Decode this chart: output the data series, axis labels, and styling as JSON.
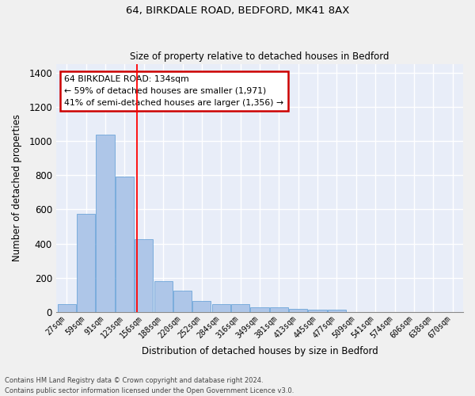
{
  "title1": "64, BIRKDALE ROAD, BEDFORD, MK41 8AX",
  "title2": "Size of property relative to detached houses in Bedford",
  "xlabel": "Distribution of detached houses by size in Bedford",
  "ylabel": "Number of detached properties",
  "categories": [
    "27sqm",
    "59sqm",
    "91sqm",
    "123sqm",
    "156sqm",
    "188sqm",
    "220sqm",
    "252sqm",
    "284sqm",
    "316sqm",
    "349sqm",
    "381sqm",
    "413sqm",
    "445sqm",
    "477sqm",
    "509sqm",
    "541sqm",
    "574sqm",
    "606sqm",
    "638sqm",
    "670sqm"
  ],
  "values": [
    48,
    572,
    1040,
    790,
    425,
    180,
    125,
    65,
    48,
    48,
    28,
    25,
    18,
    12,
    12,
    0,
    0,
    0,
    0,
    0,
    0
  ],
  "bar_color": "#aec6e8",
  "bar_edge_color": "#5b9bd5",
  "bg_color": "#e8edf8",
  "grid_color": "#ffffff",
  "red_line_x": 3.62,
  "annotation_line1": "64 BIRKDALE ROAD: 134sqm",
  "annotation_line2": "← 59% of detached houses are smaller (1,971)",
  "annotation_line3": "41% of semi-detached houses are larger (1,356) →",
  "annotation_box_color": "#ffffff",
  "annotation_box_edge": "#cc0000",
  "footnote": "Contains HM Land Registry data © Crown copyright and database right 2024.\nContains public sector information licensed under the Open Government Licence v3.0.",
  "ylim": [
    0,
    1450
  ],
  "yticks": [
    0,
    200,
    400,
    600,
    800,
    1000,
    1200,
    1400
  ]
}
